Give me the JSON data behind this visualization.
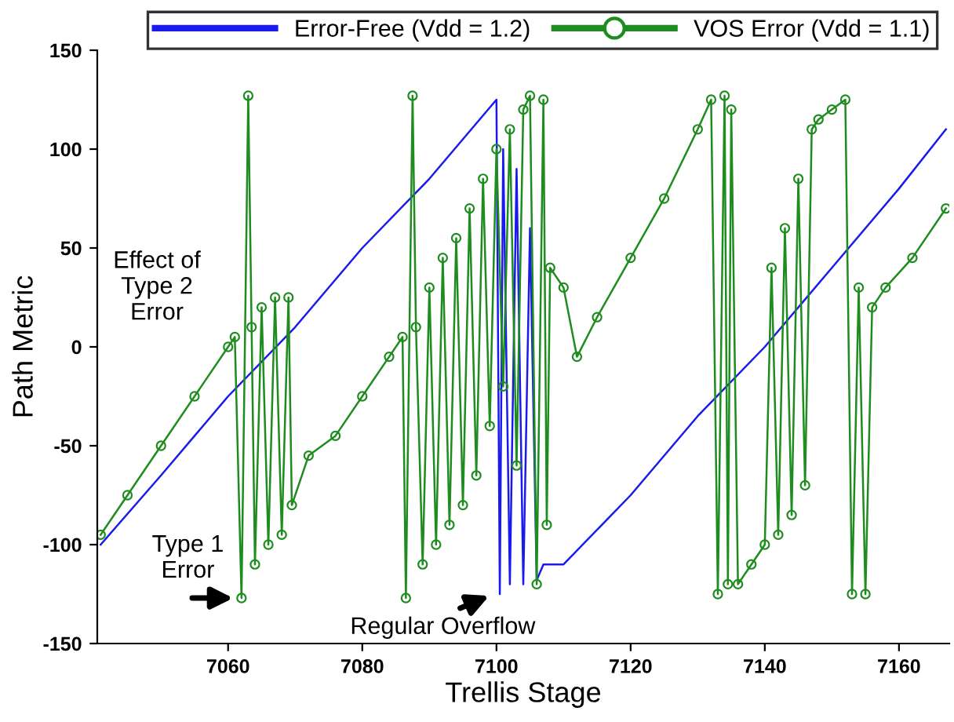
{
  "chart_data": {
    "type": "line",
    "xlabel": "Trellis Stage",
    "ylabel": "Path Metric",
    "xlim": [
      7040.5,
      7167.5
    ],
    "ylim": [
      -150,
      150
    ],
    "xticks": [
      7060,
      7080,
      7100,
      7120,
      7140,
      7160
    ],
    "yticks": [
      -150,
      -100,
      -50,
      0,
      50,
      100,
      150
    ],
    "legend": "top right",
    "series": [
      {
        "name": "Error-Free (Vdd = 1.2)",
        "color": "#1a1aee",
        "marker": "none",
        "x": [
          7041,
          7050,
          7060,
          7070,
          7080,
          7090,
          7100,
          7100.5,
          7101,
          7102,
          7103,
          7104,
          7105,
          7106,
          7107,
          7110,
          7120,
          7130,
          7140,
          7150,
          7160,
          7167
        ],
        "values": [
          -100,
          -65,
          -25,
          10,
          50,
          85,
          125,
          -125,
          100,
          -120,
          90,
          -120,
          60,
          -118,
          -110,
          -110,
          -75,
          -35,
          0,
          40,
          80,
          110
        ]
      },
      {
        "name": "VOS Error (Vdd = 1.1)",
        "color": "#1e8c1e",
        "marker": "circle",
        "x": [
          7041,
          7045,
          7050,
          7055,
          7060,
          7061,
          7062,
          7063,
          7063.5,
          7064,
          7065,
          7066,
          7067,
          7068,
          7069,
          7069.5,
          7072,
          7076,
          7080,
          7084,
          7086,
          7086.5,
          7087.5,
          7088,
          7089,
          7090,
          7091,
          7092,
          7093,
          7094,
          7095,
          7096,
          7097,
          7098,
          7099,
          7100,
          7101,
          7102,
          7103,
          7104,
          7105,
          7106,
          7107,
          7107.5,
          7108,
          7110,
          7112,
          7115,
          7120,
          7125,
          7130,
          7132,
          7133,
          7134,
          7134.5,
          7135,
          7136,
          7138,
          7140,
          7141,
          7142,
          7143,
          7144,
          7145,
          7146,
          7147,
          7148,
          7150,
          7152,
          7153,
          7154,
          7155,
          7156,
          7158,
          7162,
          7167
        ],
        "values": [
          -95,
          -75,
          -50,
          -25,
          0,
          5,
          -127,
          127,
          10,
          -110,
          20,
          -100,
          25,
          -95,
          25,
          -80,
          -55,
          -45,
          -25,
          -5,
          5,
          -127,
          127,
          10,
          -110,
          30,
          -100,
          45,
          -90,
          55,
          -80,
          70,
          -65,
          85,
          -40,
          100,
          -20,
          110,
          -60,
          120,
          127,
          -120,
          125,
          -90,
          40,
          30,
          -5,
          15,
          45,
          75,
          110,
          125,
          -125,
          127,
          -120,
          120,
          -120,
          -110,
          -100,
          40,
          -95,
          60,
          -85,
          85,
          -70,
          110,
          115,
          120,
          125,
          -125,
          30,
          -125,
          20,
          30,
          45,
          70
        ]
      }
    ],
    "annotations": [
      "Effect of\nType 2\nError",
      {
        "text": "Type 1\nError",
        "x": 7062,
        "y": -127
      },
      {
        "text": "Regular Overflow",
        "x": 7100,
        "y": -125
      }
    ]
  }
}
